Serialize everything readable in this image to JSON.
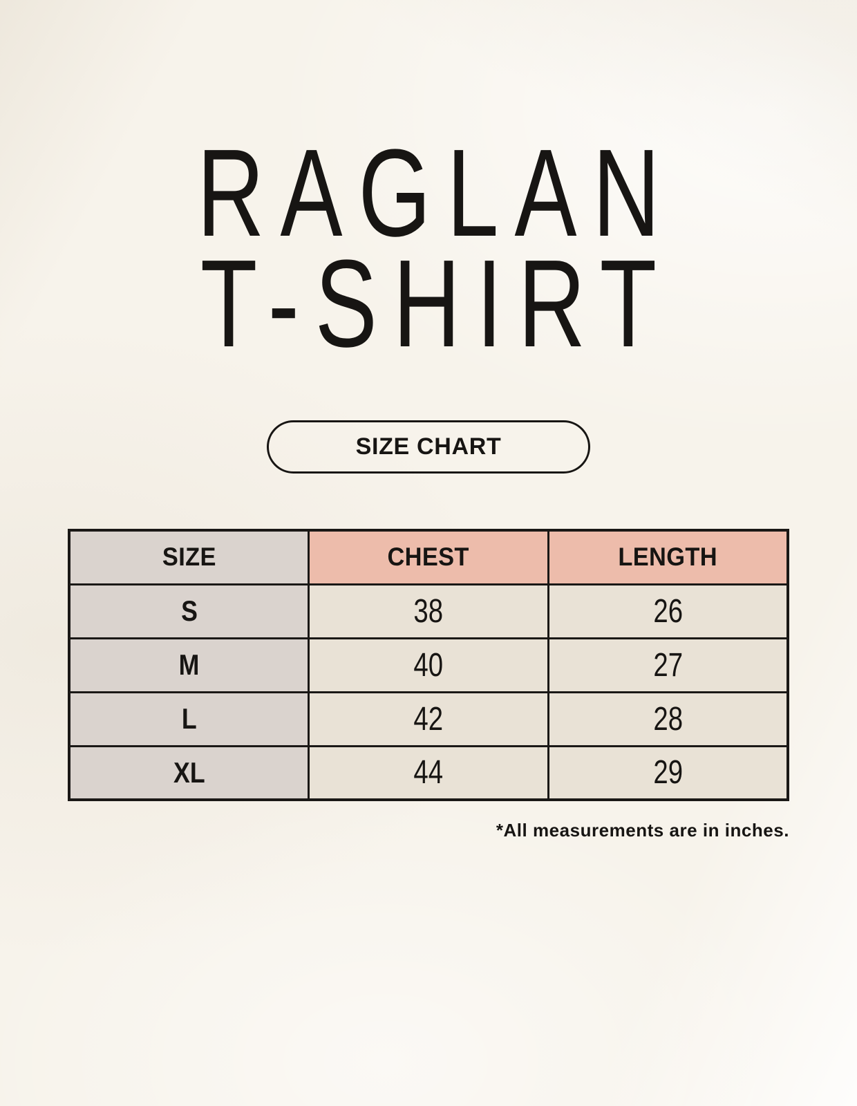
{
  "header": {
    "title_line1": "RAGLAN",
    "title_line2": "T-SHIRT",
    "size_chart_label": "SIZE CHART"
  },
  "table": {
    "headers": [
      "SIZE",
      "CHEST",
      "LENGTH"
    ],
    "rows": [
      [
        "S",
        "38",
        "26"
      ],
      [
        "M",
        "40",
        "27"
      ],
      [
        "L",
        "42",
        "28"
      ],
      [
        "XL",
        "44",
        "29"
      ]
    ]
  },
  "footnote": "*All measurements are in inches.",
  "colors": {
    "background": "#f7f3eb",
    "header_accent_pink": "#edbcab",
    "size_column_gray": "#dad3ce",
    "cell_beige": "#e9e2d6",
    "border": "#1a1816",
    "text": "#171513"
  },
  "chart_data": {
    "type": "table",
    "title": "RAGLAN T-SHIRT",
    "columns": [
      "SIZE",
      "CHEST",
      "LENGTH"
    ],
    "rows": [
      [
        "S",
        38,
        26
      ],
      [
        "M",
        40,
        27
      ],
      [
        "L",
        42,
        28
      ],
      [
        "XL",
        44,
        29
      ]
    ],
    "note": "*All measurements are in inches."
  }
}
